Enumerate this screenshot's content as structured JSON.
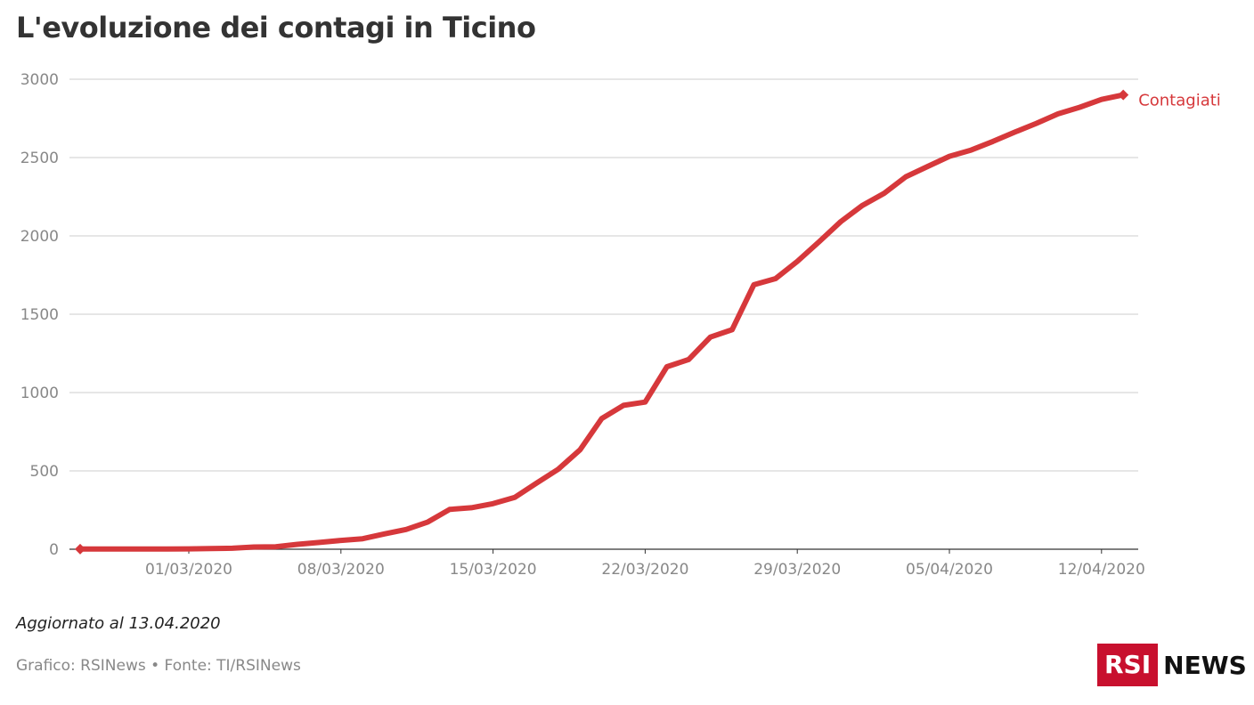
{
  "title": "L'evoluzione dei contagi in Ticino",
  "updated": "Aggiornato al 13.04.2020",
  "source": "Grafico: RSINews • Fonte: TI/RSINews",
  "logo": {
    "primary": "RSI",
    "secondary": "NEWS"
  },
  "chart_data": {
    "type": "line",
    "title": "L'evoluzione dei contagi in Ticino",
    "xlabel": "",
    "ylabel": "",
    "ylim": [
      0,
      3000
    ],
    "yticks": [
      0,
      500,
      1000,
      1500,
      2000,
      2500,
      3000
    ],
    "xticks": [
      "01/03/2020",
      "08/03/2020",
      "15/03/2020",
      "22/03/2020",
      "29/03/2020",
      "05/04/2020",
      "12/04/2020"
    ],
    "grid": true,
    "x_start": "25/02/2020",
    "series": [
      {
        "name": "Contagiati",
        "color": "#d6383b",
        "values": [
          1,
          1,
          1,
          1,
          1,
          2,
          4,
          6,
          14,
          16,
          31,
          43,
          56,
          67,
          98,
          126,
          174,
          254,
          265,
          291,
          331,
          422,
          511,
          634,
          834,
          918,
          939,
          1165,
          1211,
          1354,
          1401,
          1688,
          1727,
          1837,
          1962,
          2091,
          2195,
          2272,
          2378,
          2443,
          2508,
          2548,
          2603,
          2662,
          2718,
          2779,
          2821,
          2871,
          2900
        ]
      }
    ]
  }
}
